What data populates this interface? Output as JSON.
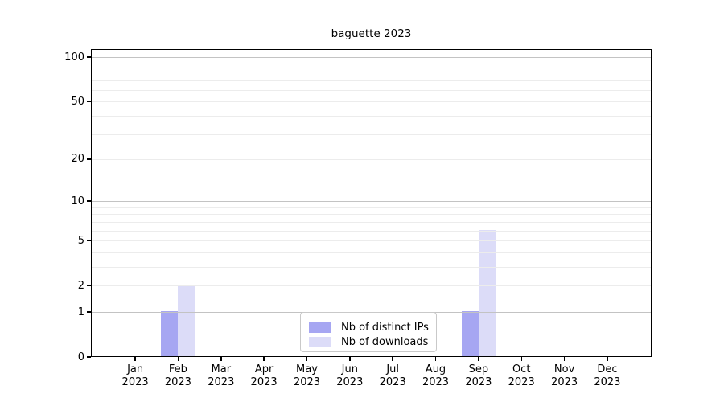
{
  "window": {
    "background": "#ffffff"
  },
  "chart_data": {
    "type": "bar",
    "title": "baguette 2023",
    "categories": [
      "Jan 2023",
      "Feb 2023",
      "Mar 2023",
      "Apr 2023",
      "May 2023",
      "Jun 2023",
      "Jul 2023",
      "Aug 2023",
      "Sep 2023",
      "Oct 2023",
      "Nov 2023",
      "Dec 2023"
    ],
    "series": [
      {
        "name": "Nb of distinct IPs",
        "color": "#a6a6f2",
        "values": [
          0,
          1,
          0,
          0,
          0,
          0,
          0,
          0,
          1,
          0,
          0,
          0
        ]
      },
      {
        "name": "Nb of downloads",
        "color": "#dcdcf8",
        "values": [
          0,
          2,
          0,
          0,
          0,
          0,
          0,
          0,
          6,
          0,
          0,
          0
        ]
      }
    ],
    "xlabel": "",
    "ylabel": "",
    "yscale": "log1p",
    "ylim": [
      0,
      113.3
    ],
    "yticks": [
      0,
      1,
      2,
      5,
      10,
      20,
      50,
      100
    ],
    "grid": {
      "major_values": [
        1,
        10,
        100
      ],
      "minor_values": [
        2,
        3,
        4,
        5,
        6,
        7,
        8,
        9,
        20,
        30,
        40,
        50,
        60,
        70,
        80,
        90
      ],
      "major_color": "#c3c3c3",
      "minor_color": "#ececec"
    },
    "legend_position": "lower center"
  },
  "colors": {
    "axis": "#000000",
    "text": "#000000",
    "legend_border": "#c9c9c9"
  }
}
